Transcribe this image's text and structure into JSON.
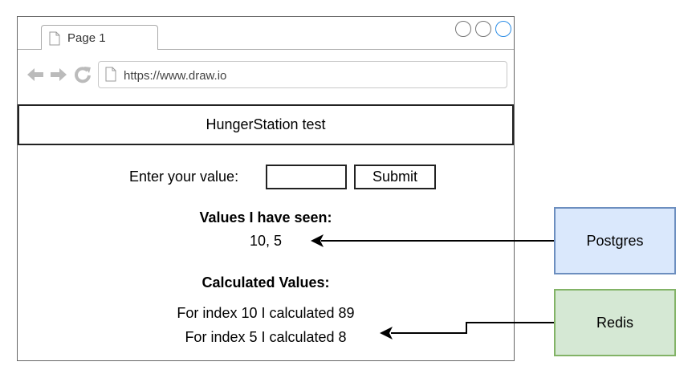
{
  "browser": {
    "tab_label": "Page 1",
    "url": "https://www.draw.io"
  },
  "page": {
    "header_title": "HungerStation test",
    "input_label": "Enter your value:",
    "input_value": "",
    "submit_label": "Submit",
    "seen_heading": "Values I have seen:",
    "seen_values": "10, 5",
    "calculated_heading": "Calculated Values:",
    "calculated_lines": [
      "For index 10 I calculated 89",
      "For index 5 I calculated 8"
    ]
  },
  "stores": {
    "postgres_label": "Postgres",
    "redis_label": "Redis"
  },
  "colors": {
    "postgres_fill": "#dae8fc",
    "postgres_border": "#6c8ebf",
    "redis_fill": "#d5e8d4",
    "redis_border": "#82b366",
    "window_control_active": "#2d8ee6"
  },
  "icons": [
    "page-icon",
    "back-arrow-icon",
    "forward-arrow-icon",
    "refresh-icon"
  ]
}
